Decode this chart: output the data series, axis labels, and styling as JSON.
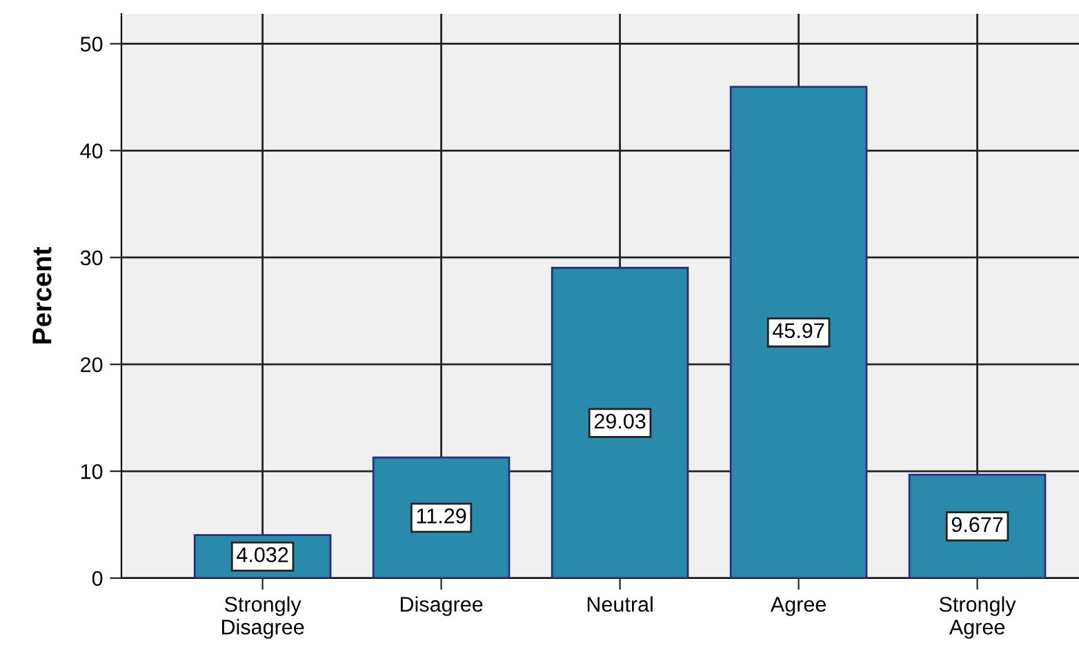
{
  "chart_data": {
    "type": "bar",
    "ylabel": "Percent",
    "categories": [
      "Strongly\nDisagree",
      "Disagree",
      "Neutral",
      "Agree",
      "Strongly\nAgree"
    ],
    "values": [
      4.032,
      11.29,
      29.03,
      45.97,
      9.677
    ],
    "color": "#2a8aab",
    "data_labels": true,
    "grid": true,
    "ylim": [
      0,
      52.8
    ],
    "yticks": [
      0,
      10,
      20,
      30,
      40,
      50
    ]
  }
}
